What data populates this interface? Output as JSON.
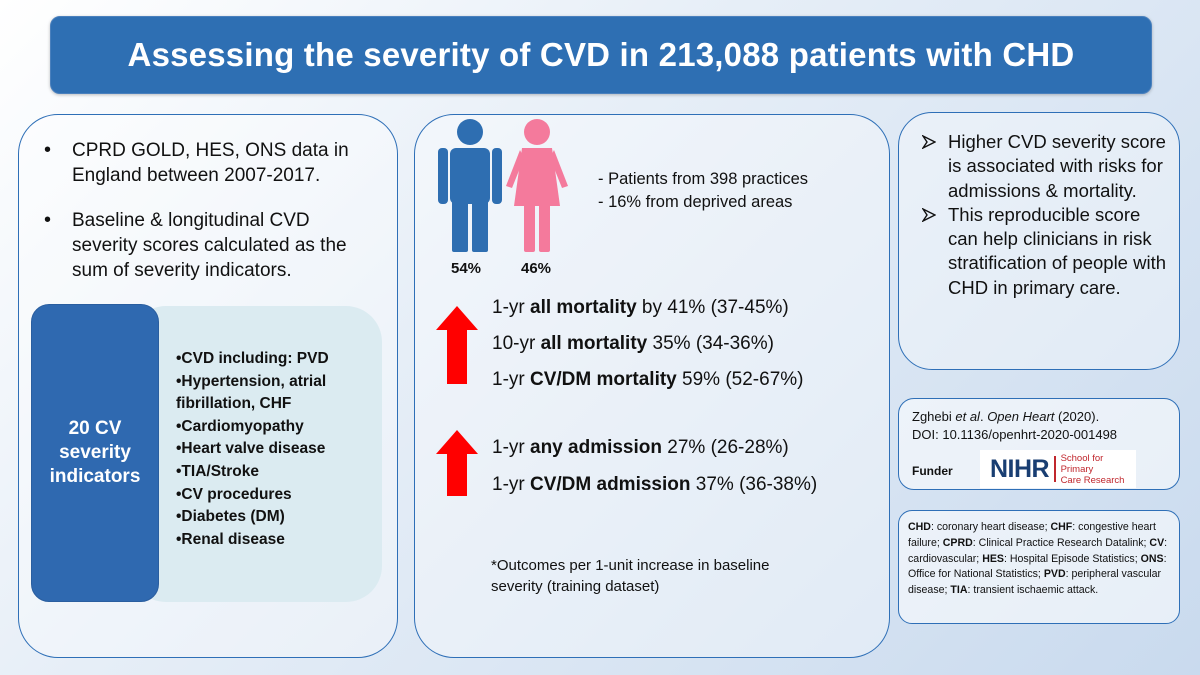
{
  "title": "Assessing the severity of CVD in 213,088 patients with CHD",
  "left": {
    "bullets": [
      "CPRD GOLD, HES, ONS data in England between 2007-2017.",
      "Baseline & longitudinal CVD severity scores calculated as the sum of severity indicators."
    ],
    "indicators_label": "20 CV severity indicators",
    "indicators": [
      "•CVD including: PVD",
      "•Hypertension, atrial fibrillation, CHF",
      "•Cardiomyopathy",
      "•Heart valve disease",
      "•TIA/Stroke",
      "•CV procedures",
      "•Diabetes (DM)",
      "•Renal disease"
    ]
  },
  "middle": {
    "male_pct": "54%",
    "female_pct": "46%",
    "practice_lines": [
      "- Patients from 398 practices",
      "- 16% from deprived areas"
    ],
    "mortality": [
      {
        "pre": "1-yr ",
        "bold": "all mortality",
        "post": " by 41% (37-45%)"
      },
      {
        "pre": "10-yr ",
        "bold": "all mortality",
        "post": " 35% (34-36%)"
      },
      {
        "pre": "1-yr ",
        "bold": "CV/DM mortality",
        "post": " 59% (52-67%)"
      }
    ],
    "admission": [
      {
        "pre": "1-yr ",
        "bold": "any admission",
        "post": " 27% (26-28%)"
      },
      {
        "pre": "1-yr ",
        "bold": "CV/DM admission",
        "post": " 37% (36-38%)"
      }
    ],
    "footnote": "*Outcomes per 1-unit increase in baseline severity (training dataset)"
  },
  "conclusions": [
    "Higher CVD severity score is associated with risks for admissions & mortality.",
    "This reproducible score can help clinicians in risk stratification of people with CHD in primary care."
  ],
  "reference": {
    "authors": "Zghebi ",
    "etal": "et al",
    "journal_pre": ". ",
    "journal": "Open Heart",
    "year": " (2020).",
    "doi": "DOI: 10.1136/openhrt-2020-001498",
    "funder_label": "Funder",
    "logo_text": "NIHR",
    "logo_sub_1": "School for Primary",
    "logo_sub_2": "Care Research"
  },
  "abbreviations": [
    {
      "abbr": "CHD",
      "def": ": coronary heart disease; "
    },
    {
      "abbr": "CHF",
      "def": ": congestive heart failure; "
    },
    {
      "abbr": "CPRD",
      "def": ": Clinical Practice Research Datalink; "
    },
    {
      "abbr": "CV",
      "def": ": cardiovascular; "
    },
    {
      "abbr": "HES",
      "def": ": Hospital Episode Statistics; "
    },
    {
      "abbr": "ONS",
      "def": ": Office for National Statistics; "
    },
    {
      "abbr": "PVD",
      "def": ": peripheral vascular disease; "
    },
    {
      "abbr": "TIA",
      "def": ": transient ischaemic attack."
    }
  ],
  "colors": {
    "title_bg": "#2e6fb3",
    "male": "#2e6eb1",
    "female": "#f47a9c",
    "arrow": "#ff0000",
    "indicator_box": "#2f69b0",
    "indicator_bg": "#dbebf1"
  }
}
